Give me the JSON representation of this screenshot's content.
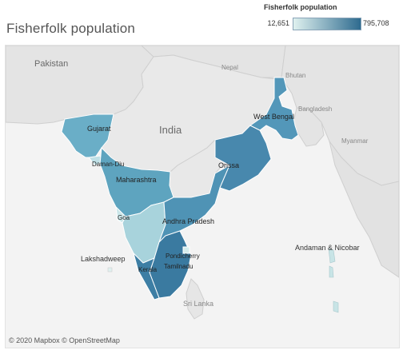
{
  "title": "Fisherfolk population",
  "legend": {
    "title": "Fisherfolk population",
    "min_label": "12,651",
    "max_label": "795,708",
    "color_min": "#dff1ef",
    "color_max": "#2e6b8f"
  },
  "map": {
    "countries": {
      "pakistan": "Pakistan",
      "nepal": "Nepal",
      "bhutan": "Bhutan",
      "india": "India",
      "bangladesh": "Bangladesh",
      "myanmar": "Myanmar",
      "sri_lanka": "Sri Lanka"
    },
    "regions": [
      {
        "id": "gujarat",
        "name": "Gujarat",
        "color": "#6aaec7"
      },
      {
        "id": "daman-diu",
        "name": "Daman-Diu",
        "color": "#bfe0e6"
      },
      {
        "id": "maharashtra",
        "name": "Maharashtra",
        "color": "#5ea4bf"
      },
      {
        "id": "goa",
        "name": "Goa",
        "color": "#cbe6e9"
      },
      {
        "id": "karnataka",
        "name": "",
        "color": "#a8d3dc"
      },
      {
        "id": "andhra-pradesh",
        "name": "Andhra Pradesh",
        "color": "#4f93b5"
      },
      {
        "id": "orissa",
        "name": "Orissa",
        "color": "#4888ad"
      },
      {
        "id": "west-bengal",
        "name": "West Bengal",
        "color": "#5397b9"
      },
      {
        "id": "tamilnadu",
        "name": "Tamilnadu",
        "color": "#3a7aa0"
      },
      {
        "id": "pondicherry",
        "name": "Pondicherry",
        "color": "#d4ecec"
      },
      {
        "id": "kerala",
        "name": "Kerala",
        "color": "#3d7ea4"
      },
      {
        "id": "lakshadweep",
        "name": "Lakshadweep",
        "color": "#e0f1ef"
      },
      {
        "id": "andaman-nicobar",
        "name": "Andaman & Nicobar",
        "color": "#c8e4e6"
      }
    ]
  },
  "attribution": "© 2020 Mapbox © OpenStreetMap"
}
